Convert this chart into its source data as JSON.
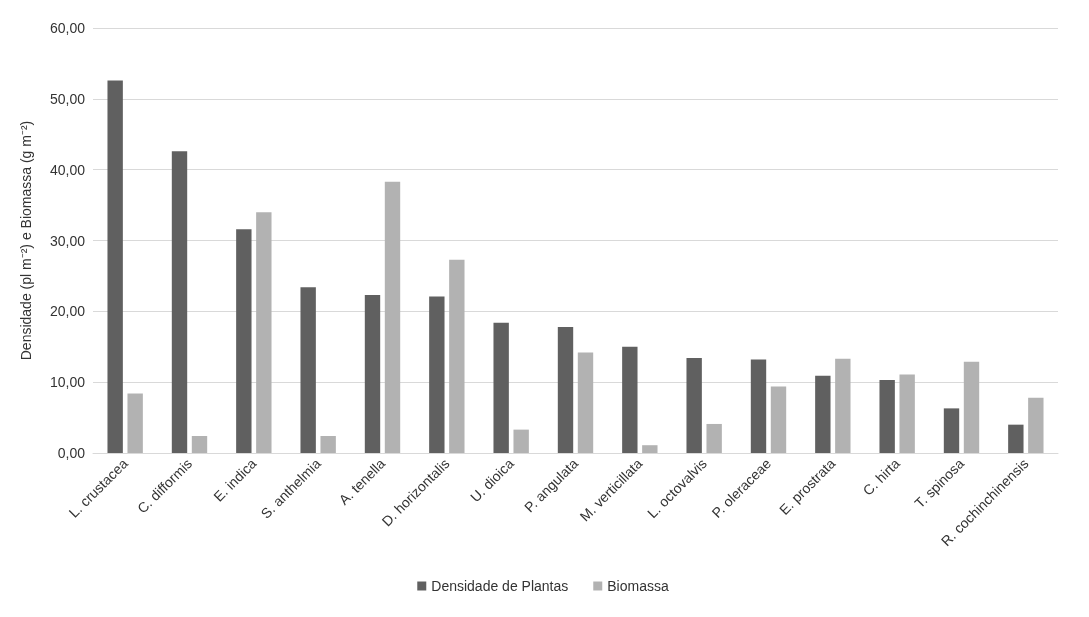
{
  "chart_data": {
    "type": "bar",
    "ylabel": "Densidade (pl m⁻²) e Biomassa (g m⁻²)",
    "categories": [
      "L. crustacea",
      "C. difformis",
      "E. indica",
      "S. anthelmia",
      "A. tenella",
      "D. horizontalis",
      "U. dioica",
      "P. angulata",
      "M. verticillata",
      "L. octovalvis",
      "P. oleraceae",
      "E. prostrata",
      "C. hirta",
      "T. spinosa",
      "R. cochinchinensis"
    ],
    "series": [
      {
        "name": "Densidade de Plantas",
        "color": "#606060",
        "values": [
          52.6,
          42.6,
          31.6,
          23.4,
          22.3,
          22.1,
          18.4,
          17.8,
          15.0,
          13.4,
          13.2,
          10.9,
          10.3,
          6.3,
          4.0
        ]
      },
      {
        "name": "Biomassa",
        "color": "#b2b2b2",
        "values": [
          8.4,
          2.4,
          34.0,
          2.4,
          38.3,
          27.3,
          3.3,
          14.2,
          1.1,
          4.1,
          9.4,
          13.3,
          11.1,
          12.9,
          7.8
        ]
      }
    ],
    "ylim": [
      0,
      60
    ],
    "yticks": [
      {
        "value": 0,
        "label": "0,00"
      },
      {
        "value": 10,
        "label": "10,00"
      },
      {
        "value": 20,
        "label": "20,00"
      },
      {
        "value": 30,
        "label": "30,00"
      },
      {
        "value": 40,
        "label": "40,00"
      },
      {
        "value": 50,
        "label": "50,00"
      },
      {
        "value": 60,
        "label": "60,00"
      }
    ],
    "grid": "y",
    "legend": "bottom"
  }
}
